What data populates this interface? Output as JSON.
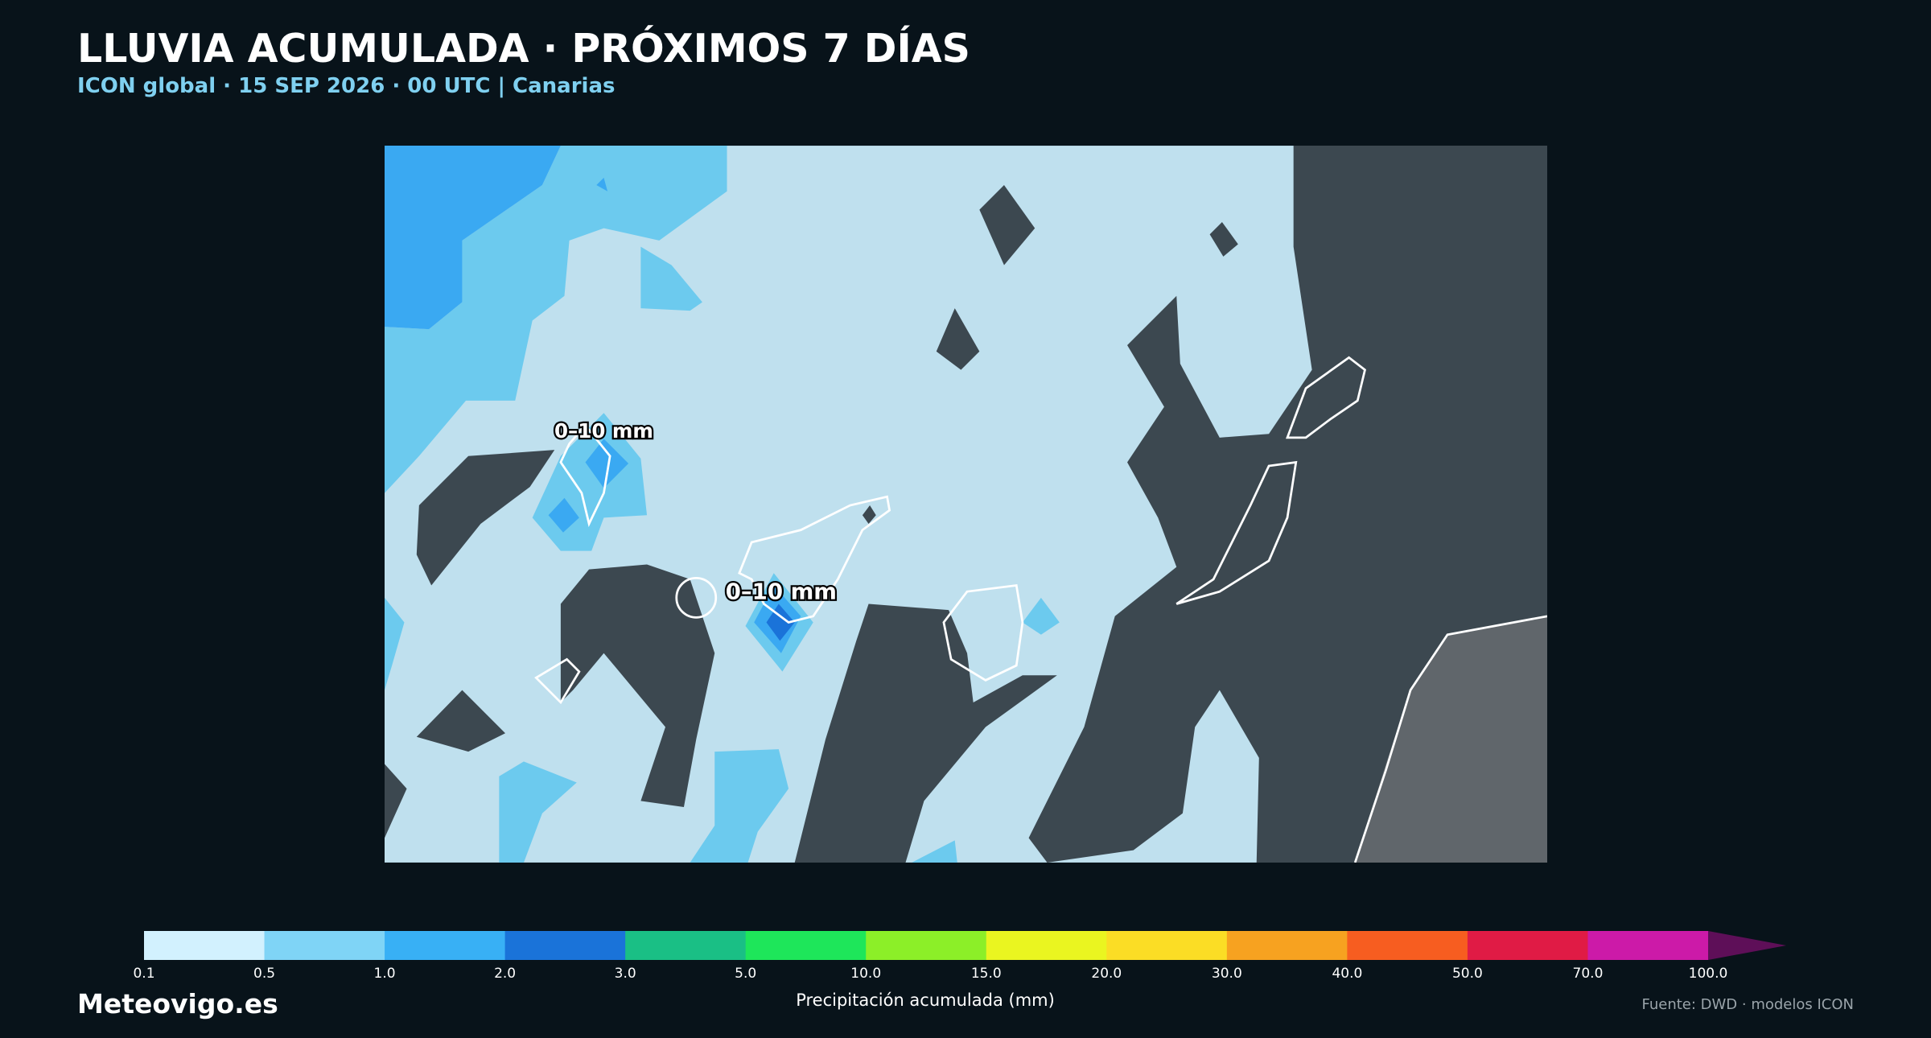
{
  "header": {
    "title": "LLUVIA ACUMULADA · PRÓXIMOS 7 DÍAS",
    "subtitle": "ICON global · 15 SEP 2026 · 00 UTC | Canarias"
  },
  "map": {
    "labels": [
      "0–10 mm",
      "0–10 mm"
    ]
  },
  "colorbar": {
    "ticks": [
      "0.1",
      "0.5",
      "1.0",
      "2.0",
      "3.0",
      "5.0",
      "10.0",
      "15.0",
      "20.0",
      "30.0",
      "40.0",
      "50.0",
      "70.0",
      "100.0"
    ],
    "colors": [
      "#d2f1fe",
      "#7fd4f6",
      "#38b0f5",
      "#1a73d9",
      "#1abf85",
      "#1ee65a",
      "#8cef28",
      "#eaf520",
      "#fbdd25",
      "#f7a220",
      "#f75d20",
      "#e01b45",
      "#cc1aa8"
    ],
    "extend_color": "#5e0f58",
    "label": "Precipitación acumulada (mm)"
  },
  "footer": {
    "brand": "Meteovigo.es",
    "source": "Fuente: DWD · modelos ICON"
  }
}
